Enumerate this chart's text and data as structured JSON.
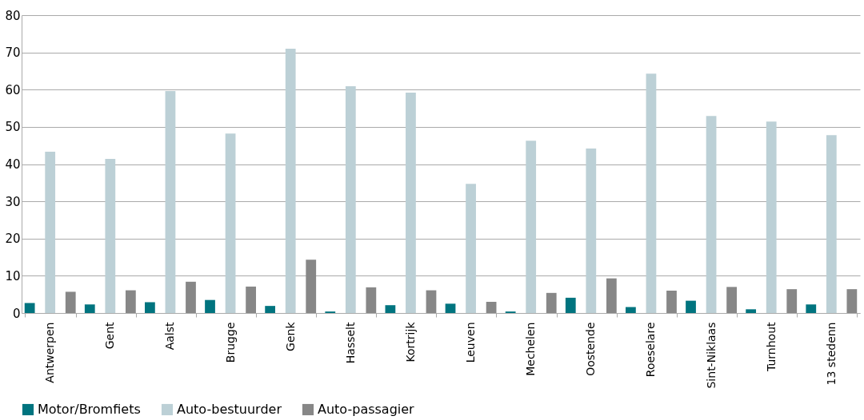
{
  "chart_data": {
    "type": "bar",
    "categories": [
      "Antwerpen",
      "Gent",
      "Aalst",
      "Brugge",
      "Genk",
      "Hasselt",
      "Kortrijk",
      "Leuven",
      "Mechelen",
      "Oostende",
      "Roeselare",
      "Sint-Niklaas",
      "Turnhout",
      "13 stedenn"
    ],
    "series": [
      {
        "name": "Motor/Bromfiets",
        "color": "#00747f",
        "values": [
          2.7,
          2.3,
          2.9,
          3.5,
          1.9,
          0.4,
          2.1,
          2.5,
          0.4,
          4.1,
          1.6,
          3.3,
          1.0,
          2.3
        ]
      },
      {
        "name": "Auto-bestuurder",
        "color": "#bcd0d6",
        "values": [
          43.3,
          41.4,
          59.6,
          48.2,
          71.0,
          60.9,
          59.2,
          34.7,
          46.3,
          44.2,
          64.3,
          52.9,
          51.4,
          47.8
        ]
      },
      {
        "name": "Auto-passagier",
        "color": "#878787",
        "values": [
          5.7,
          6.1,
          8.4,
          7.1,
          14.3,
          6.9,
          6.1,
          3.0,
          5.4,
          9.3,
          6.0,
          7.0,
          6.4,
          6.4
        ]
      }
    ],
    "ylim": [
      0,
      80
    ],
    "yticks": [
      0,
      10,
      20,
      30,
      40,
      50,
      60,
      70,
      80
    ],
    "grid": "y",
    "legend": "bottom"
  }
}
